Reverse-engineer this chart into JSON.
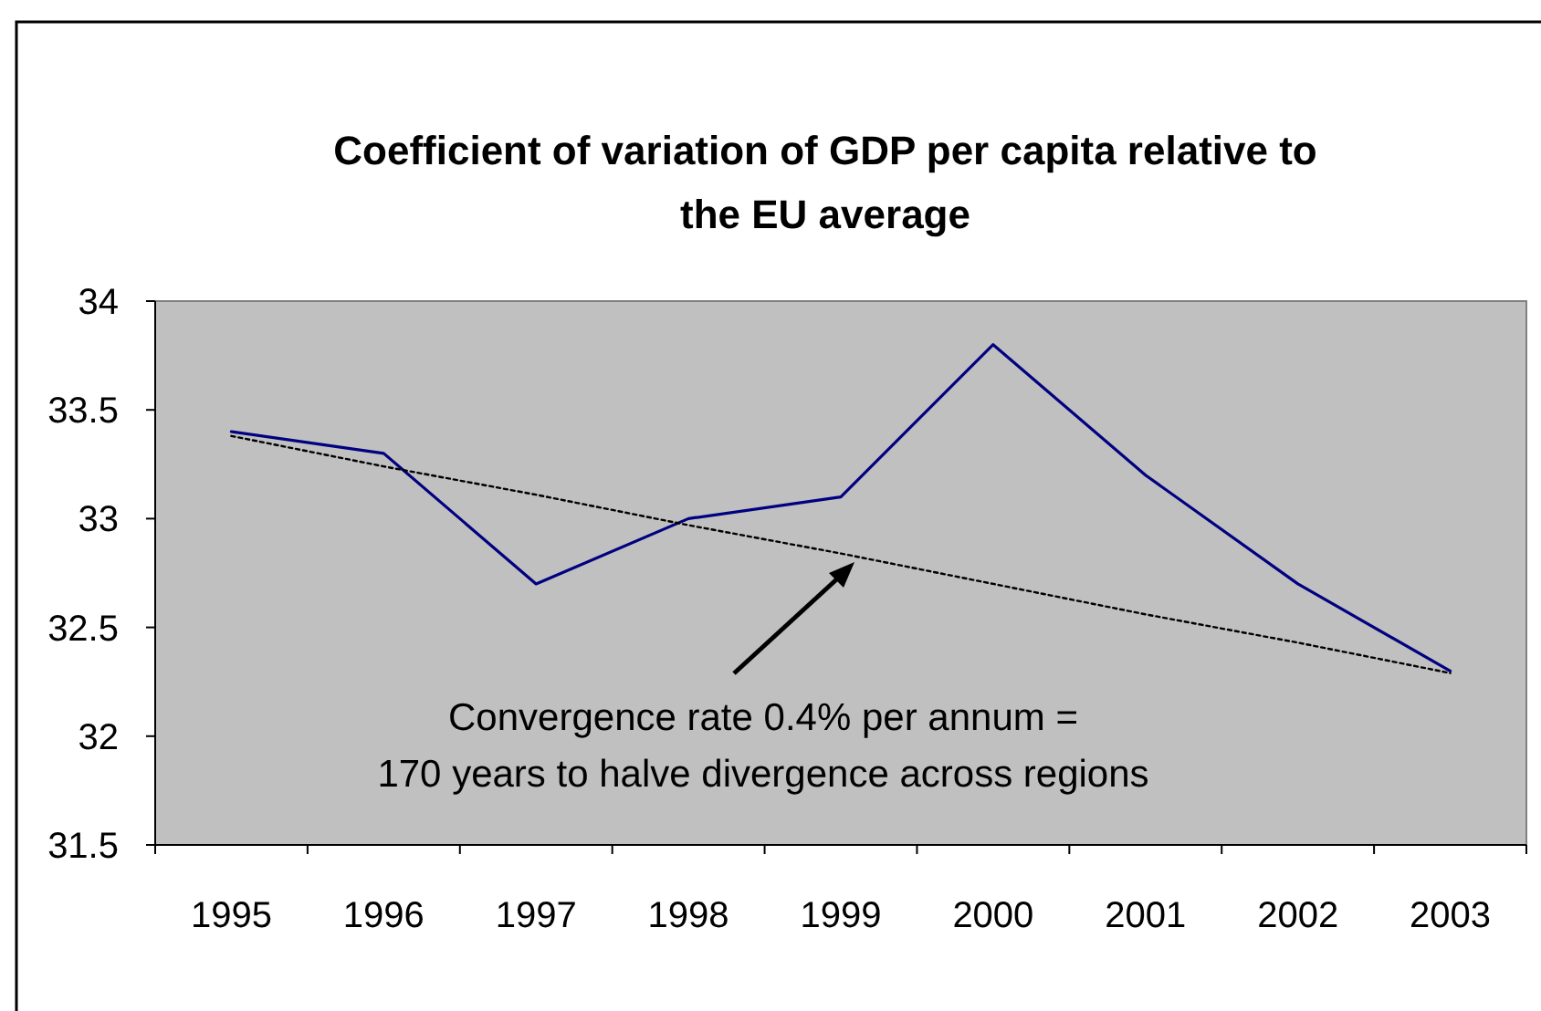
{
  "chart_data": {
    "type": "line",
    "title": "Coefficient of variation of GDP per capita relative to the EU average",
    "categories": [
      "1995",
      "1996",
      "1997",
      "1998",
      "1999",
      "2000",
      "2001",
      "2002",
      "2003"
    ],
    "series": [
      {
        "color": "#000080",
        "values": [
          33.4,
          33.3,
          32.7,
          33.0,
          33.1,
          33.8,
          33.2,
          32.7,
          32.3
        ],
        "line_style": "solid"
      },
      {
        "type": "line",
        "color": "#000000",
        "values": [
          33.38,
          33.24,
          33.11,
          32.97,
          32.84,
          32.7,
          32.56,
          32.43,
          32.29
        ],
        "line_style": "dotted"
      }
    ],
    "ylim": [
      31.5,
      34
    ],
    "yticks": [
      31.5,
      32,
      32.5,
      33,
      33.5,
      34
    ],
    "grid": false,
    "marker": "none",
    "annotations": [
      "Convergence rate 0.4% per annum = 170 years to halve divergence across regions"
    ]
  }
}
